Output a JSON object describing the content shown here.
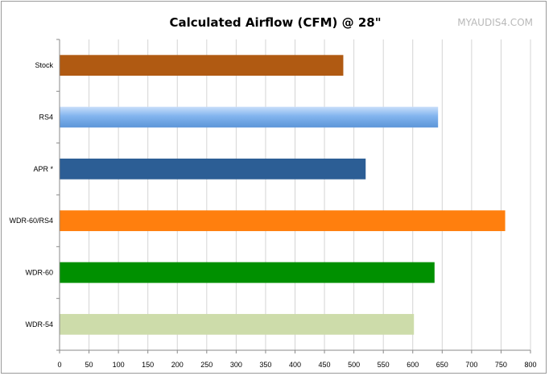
{
  "chart_data": {
    "type": "bar",
    "orientation": "horizontal",
    "title": "Calculated Airflow (CFM) @ 28\"",
    "watermark": "MYAUDIS4.COM",
    "xlabel": "",
    "ylabel": "",
    "xlim": [
      0,
      800
    ],
    "x_ticks": [
      0,
      50,
      100,
      150,
      200,
      250,
      300,
      350,
      400,
      450,
      500,
      550,
      600,
      650,
      700,
      750,
      800
    ],
    "grid": true,
    "legend": false,
    "categories": [
      "Stock",
      "RS4",
      "APR *",
      "WDR-60/RS4",
      "WDR-60",
      "WDR-54"
    ],
    "values": [
      482,
      643,
      520,
      757,
      637,
      602
    ],
    "colors": [
      "#b05a12",
      "#82b4ee",
      "#2c5e95",
      "#ff7f0e",
      "#009000",
      "#cddcaa"
    ]
  }
}
